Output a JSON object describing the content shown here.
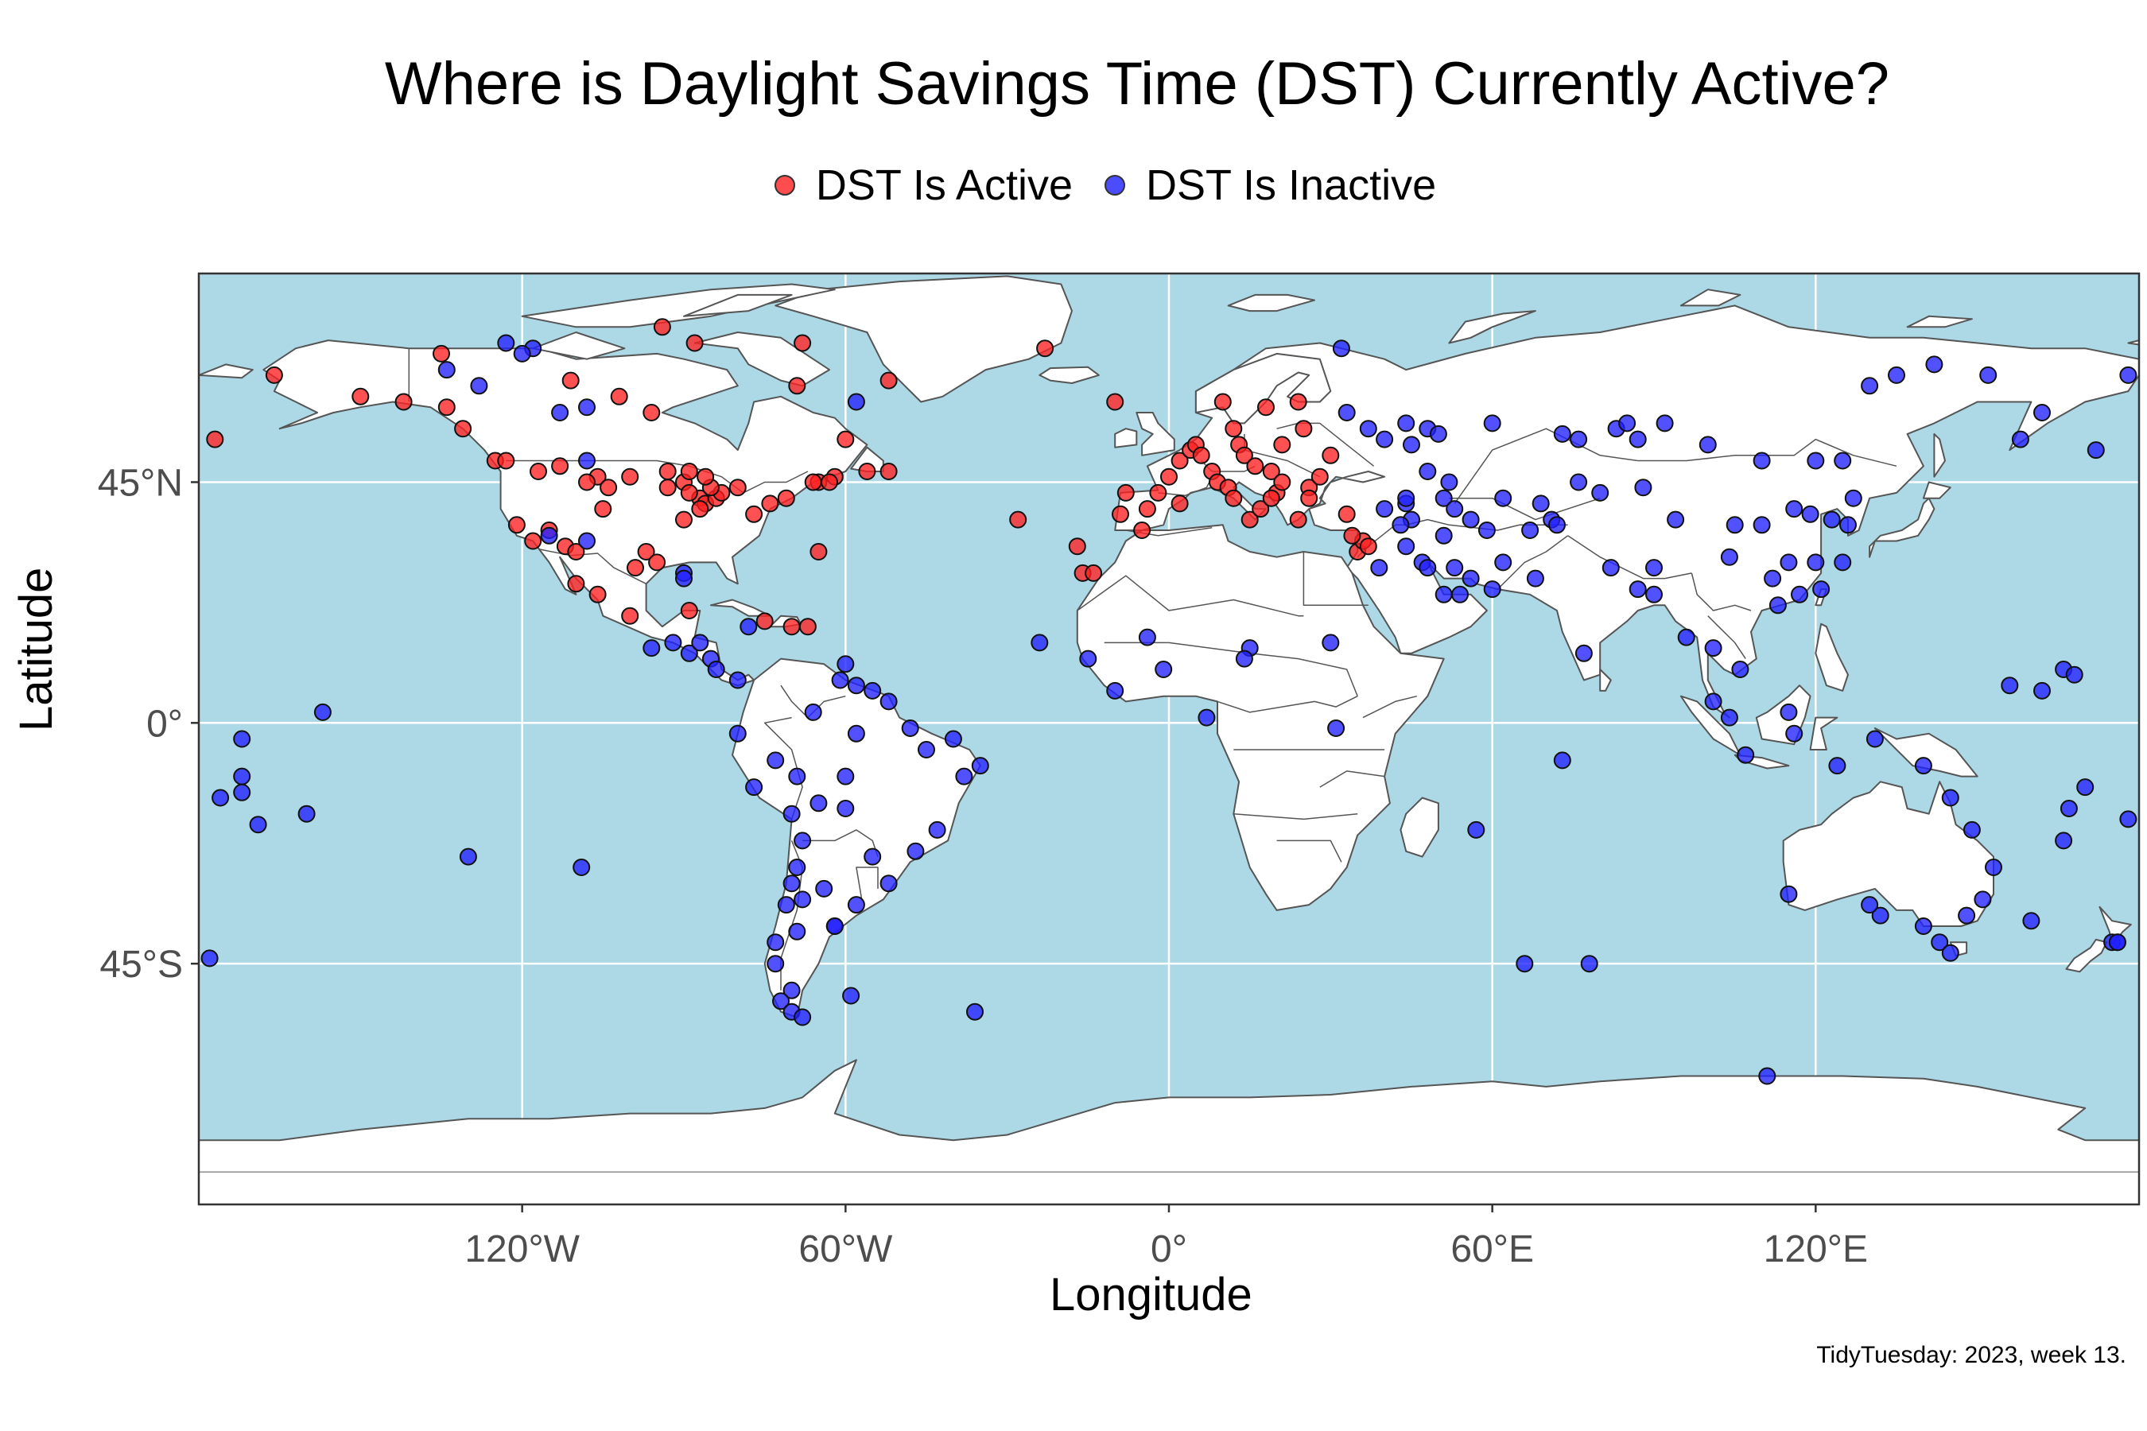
{
  "title": "Where is Daylight Savings Time (DST) Currently Active?",
  "legend": {
    "items": [
      {
        "label": "DST Is Active",
        "color": "#ff2020"
      },
      {
        "label": "DST Is Inactive",
        "color": "#2020ff"
      }
    ],
    "placement": "top"
  },
  "caption": "TidyTuesday: 2023, week 13.",
  "colors": {
    "ocean": "#add8e6",
    "land": "#ffffff",
    "border": "#555555",
    "grid": "#ffffff"
  },
  "chart_data": {
    "type": "scatter",
    "xlabel": "Longitude",
    "ylabel": "Latitude",
    "xlim": [
      -180,
      180
    ],
    "ylim": [
      -90,
      84
    ],
    "x_ticks": [
      {
        "value": -120,
        "label": "120°W"
      },
      {
        "value": -60,
        "label": "60°W"
      },
      {
        "value": 0,
        "label": "0°"
      },
      {
        "value": 60,
        "label": "60°E"
      },
      {
        "value": 120,
        "label": "120°E"
      }
    ],
    "y_ticks": [
      {
        "value": 45,
        "label": "45°N"
      },
      {
        "value": 0,
        "label": "0°"
      },
      {
        "value": -45,
        "label": "45°S"
      }
    ],
    "grid": true,
    "series": [
      {
        "name": "DST Is Active",
        "color": "#ff2020",
        "points": [
          [
            -177,
            53
          ],
          [
            -166,
            65
          ],
          [
            -150,
            61
          ],
          [
            -142,
            60
          ],
          [
            -134,
            59
          ],
          [
            -135,
            69
          ],
          [
            -131,
            55
          ],
          [
            -125,
            49
          ],
          [
            -123,
            49
          ],
          [
            -111,
            64
          ],
          [
            -106,
            46
          ],
          [
            -102,
            61
          ],
          [
            -96,
            58
          ],
          [
            -94,
            74
          ],
          [
            -88,
            71
          ],
          [
            -80,
            44
          ],
          [
            -77,
            39
          ],
          [
            -74,
            41
          ],
          [
            -71,
            42
          ],
          [
            -65,
            45
          ],
          [
            -68,
            71
          ],
          [
            -69,
            63
          ],
          [
            -60,
            53
          ],
          [
            -62,
            46
          ],
          [
            -66,
            45
          ],
          [
            -63,
            45
          ],
          [
            -56,
            47
          ],
          [
            -52,
            47
          ],
          [
            -52,
            64
          ],
          [
            -23,
            70
          ],
          [
            -10,
            60
          ],
          [
            -28,
            38
          ],
          [
            -16,
            28
          ],
          [
            -14,
            28
          ],
          [
            -17,
            33
          ],
          [
            -5,
            36
          ],
          [
            -9,
            39
          ],
          [
            -8,
            43
          ],
          [
            -4,
            40
          ],
          [
            -2,
            43
          ],
          [
            2,
            41
          ],
          [
            2,
            49
          ],
          [
            0,
            46
          ],
          [
            4,
            51
          ],
          [
            5,
            52
          ],
          [
            6,
            50
          ],
          [
            8,
            47
          ],
          [
            9,
            45
          ],
          [
            12,
            55
          ],
          [
            13,
            52
          ],
          [
            14,
            50
          ],
          [
            16,
            48
          ],
          [
            19,
            47
          ],
          [
            21,
            52
          ],
          [
            24,
            60
          ],
          [
            25,
            55
          ],
          [
            18,
            59
          ],
          [
            10,
            60
          ],
          [
            11,
            44
          ],
          [
            12,
            42
          ],
          [
            15,
            38
          ],
          [
            17,
            40
          ],
          [
            20,
            43
          ],
          [
            19,
            42
          ],
          [
            24,
            38
          ],
          [
            21,
            45
          ],
          [
            26,
            44
          ],
          [
            28,
            46
          ],
          [
            30,
            50
          ],
          [
            26,
            42
          ],
          [
            33,
            39
          ],
          [
            35,
            32
          ],
          [
            36,
            34
          ],
          [
            34,
            35
          ],
          [
            37,
            33
          ],
          [
            -105,
            40
          ],
          [
            -112,
            33
          ],
          [
            -97,
            32
          ],
          [
            -87,
            42
          ],
          [
            -86,
            41
          ],
          [
            -84,
            42
          ],
          [
            -83,
            43
          ],
          [
            -85,
            44
          ],
          [
            -86,
            46
          ],
          [
            -90,
            45
          ],
          [
            -89,
            47
          ],
          [
            -93,
            47
          ],
          [
            -93,
            44
          ],
          [
            -89,
            43
          ],
          [
            -87,
            40
          ],
          [
            -90,
            38
          ],
          [
            -100,
            46
          ],
          [
            -104,
            44
          ],
          [
            -108,
            45
          ],
          [
            -113,
            48
          ],
          [
            -117,
            47
          ],
          [
            -121,
            37
          ],
          [
            -118,
            34
          ],
          [
            -115,
            36
          ],
          [
            -110,
            32
          ],
          [
            -99,
            29
          ],
          [
            -95,
            30
          ],
          [
            -110,
            26
          ],
          [
            -106,
            24
          ],
          [
            -100,
            20
          ],
          [
            -89,
            21
          ],
          [
            -70,
            18
          ],
          [
            -75,
            19
          ],
          [
            -67,
            18
          ],
          [
            -65,
            32
          ]
        ]
      },
      {
        "name": "DST Is Inactive",
        "color": "#2020ff",
        "points": [
          [
            -176,
            -14
          ],
          [
            -172,
            -3
          ],
          [
            -172,
            -10
          ],
          [
            -172,
            -13
          ],
          [
            -169,
            -19
          ],
          [
            -178,
            -44
          ],
          [
            -160,
            -17
          ],
          [
            -157,
            2
          ],
          [
            -130,
            -25
          ],
          [
            -109,
            -27
          ],
          [
            -134,
            66
          ],
          [
            -123,
            71
          ],
          [
            -118,
            70
          ],
          [
            -128,
            63
          ],
          [
            -113,
            58
          ],
          [
            -108,
            59
          ],
          [
            -115,
            35
          ],
          [
            -108,
            34
          ],
          [
            -90,
            28
          ],
          [
            -92,
            15
          ],
          [
            -89,
            13
          ],
          [
            -87,
            15
          ],
          [
            -85,
            12
          ],
          [
            -84,
            10
          ],
          [
            -80,
            8
          ],
          [
            -78,
            18
          ],
          [
            -77,
            -12
          ],
          [
            -80,
            -2
          ],
          [
            -73,
            -7
          ],
          [
            -69,
            -10
          ],
          [
            -58,
            -2
          ],
          [
            -60,
            -10
          ],
          [
            -48,
            -1
          ],
          [
            -45,
            -5
          ],
          [
            -40,
            -3
          ],
          [
            -38,
            -10
          ],
          [
            -35,
            -8
          ],
          [
            -43,
            -20
          ],
          [
            -47,
            -24
          ],
          [
            -55,
            -25
          ],
          [
            -52,
            -30
          ],
          [
            -60,
            -16
          ],
          [
            -65,
            -15
          ],
          [
            -70,
            -17
          ],
          [
            -68,
            -22
          ],
          [
            -69,
            -27
          ],
          [
            -70,
            -30
          ],
          [
            -68,
            -33
          ],
          [
            -71,
            -34
          ],
          [
            -64,
            -31
          ],
          [
            -62,
            -38
          ],
          [
            -58,
            -34
          ],
          [
            -70,
            -50
          ],
          [
            -72,
            -52
          ],
          [
            -70,
            -54
          ],
          [
            -68,
            -55
          ],
          [
            -59,
            -51
          ],
          [
            -36,
            -54
          ],
          [
            -60,
            11
          ],
          [
            -61,
            8
          ],
          [
            -55,
            6
          ],
          [
            -52,
            4
          ],
          [
            -58,
            7
          ],
          [
            -66,
            2
          ],
          [
            -96,
            14
          ],
          [
            -108,
            49
          ],
          [
            -90,
            27
          ],
          [
            -24,
            15
          ],
          [
            -4,
            16
          ],
          [
            -10,
            6
          ],
          [
            -1,
            10
          ],
          [
            -15,
            12
          ],
          [
            7,
            1
          ],
          [
            15,
            14
          ],
          [
            30,
            15
          ],
          [
            31,
            -1
          ],
          [
            14,
            12
          ],
          [
            73,
            -7
          ],
          [
            57,
            -20
          ],
          [
            66,
            -45
          ],
          [
            78,
            -45
          ],
          [
            111,
            -66
          ],
          [
            76,
            45
          ],
          [
            80,
            43
          ],
          [
            88,
            44
          ],
          [
            87,
            53
          ],
          [
            100,
            52
          ],
          [
            110,
            49
          ],
          [
            120,
            49
          ],
          [
            125,
            49
          ],
          [
            105,
            37
          ],
          [
            110,
            37
          ],
          [
            115,
            30
          ],
          [
            120,
            30
          ],
          [
            125,
            30
          ],
          [
            116,
            40
          ],
          [
            119,
            39
          ],
          [
            127,
            42
          ],
          [
            123,
            38
          ],
          [
            126,
            37
          ],
          [
            112,
            27
          ],
          [
            113,
            22
          ],
          [
            121,
            25
          ],
          [
            117,
            24
          ],
          [
            104,
            31
          ],
          [
            90,
            29
          ],
          [
            82,
            29
          ],
          [
            87,
            25
          ],
          [
            77,
            13
          ],
          [
            96,
            16
          ],
          [
            101,
            14
          ],
          [
            106,
            10
          ],
          [
            101,
            4
          ],
          [
            104,
            1
          ],
          [
            107,
            -6
          ],
          [
            115,
            2
          ],
          [
            116,
            -2
          ],
          [
            124,
            -8
          ],
          [
            131,
            -3
          ],
          [
            140,
            -8
          ],
          [
            145,
            -14
          ],
          [
            149,
            -20
          ],
          [
            148,
            -36
          ],
          [
            151,
            -33
          ],
          [
            153,
            -27
          ],
          [
            143,
            -41
          ],
          [
            140,
            -38
          ],
          [
            132,
            -36
          ],
          [
            115,
            -32
          ],
          [
            130,
            -34
          ],
          [
            175,
            -41
          ],
          [
            176,
            -41
          ],
          [
            160,
            -37
          ],
          [
            166,
            -22
          ],
          [
            167,
            -16
          ],
          [
            178,
            -18
          ],
          [
            170,
            -12
          ],
          [
            156,
            7
          ],
          [
            162,
            6
          ],
          [
            166,
            10
          ],
          [
            168,
            9
          ],
          [
            130,
            63
          ],
          [
            135,
            65
          ],
          [
            142,
            67
          ],
          [
            152,
            65
          ],
          [
            162,
            58
          ],
          [
            178,
            65
          ],
          [
            172,
            51
          ],
          [
            158,
            53
          ],
          [
            145,
            -43
          ],
          [
            176,
            -41
          ],
          [
            -58,
            60
          ],
          [
            32,
            70
          ],
          [
            33,
            58
          ],
          [
            37,
            55
          ],
          [
            40,
            53
          ],
          [
            45,
            52
          ],
          [
            48,
            55
          ],
          [
            44,
            56
          ],
          [
            50,
            54
          ],
          [
            60,
            56
          ],
          [
            73,
            54
          ],
          [
            83,
            55
          ],
          [
            92,
            56
          ],
          [
            62,
            42
          ],
          [
            69,
            41
          ],
          [
            71,
            38
          ],
          [
            67,
            36
          ],
          [
            52,
            45
          ],
          [
            48,
            47
          ],
          [
            44,
            41
          ],
          [
            45,
            38
          ],
          [
            51,
            35
          ],
          [
            53,
            29
          ],
          [
            59,
            36
          ],
          [
            60,
            25
          ],
          [
            56,
            38
          ],
          [
            40,
            40
          ],
          [
            43,
            37
          ],
          [
            44,
            33
          ],
          [
            39,
            29
          ],
          [
            47,
            30
          ],
          [
            48,
            29
          ],
          [
            51,
            24
          ],
          [
            56,
            27
          ],
          [
            51,
            42
          ],
          [
            62,
            30
          ],
          [
            -73,
            -45
          ],
          [
            -73,
            -41
          ],
          [
            -69,
            -39
          ],
          [
            -62,
            -38
          ],
          [
            -120,
            69
          ],
          [
            53,
            40
          ],
          [
            68,
            27
          ],
          [
            72,
            37
          ],
          [
            44,
            42
          ],
          [
            54,
            24
          ],
          [
            90,
            24
          ],
          [
            85,
            56
          ],
          [
            94,
            38
          ],
          [
            76,
            53
          ]
        ]
      }
    ]
  }
}
